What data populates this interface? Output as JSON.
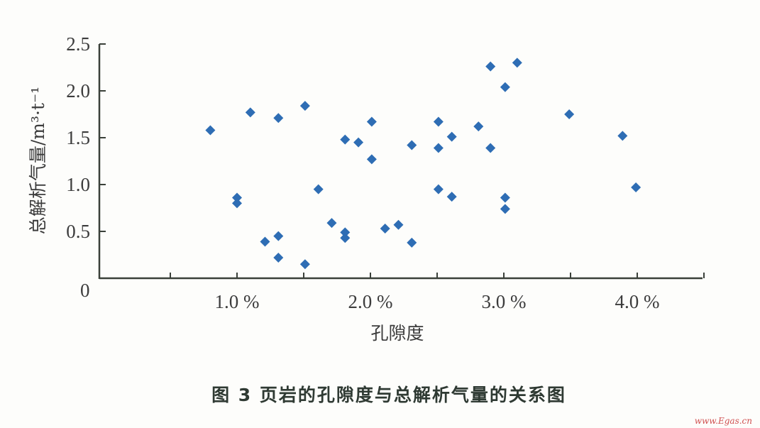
{
  "chart_data": {
    "type": "scatter",
    "caption": "图 3   页岩的孔隙度与总解析气量的关系图",
    "xlabel": "孔隙度",
    "ylabel": "总解析气量/m³·t⁻¹",
    "xlim": [
      0,
      4.5
    ],
    "ylim": [
      0,
      2.5
    ],
    "x_ticks": [
      {
        "value": 1.0,
        "label": "1.0 %"
      },
      {
        "value": 2.0,
        "label": "2.0 %"
      },
      {
        "value": 3.0,
        "label": "3.0 %"
      },
      {
        "value": 4.0,
        "label": "4.0 %"
      }
    ],
    "y_ticks": [
      {
        "value": 0.5,
        "label": "0.5"
      },
      {
        "value": 1.0,
        "label": "1.0"
      },
      {
        "value": 1.5,
        "label": "1.5"
      },
      {
        "value": 2.0,
        "label": "2.0"
      },
      {
        "value": 2.5,
        "label": "2.5"
      }
    ],
    "origin_label": "0",
    "grid": false,
    "marker": "diamond",
    "marker_color": "#2e6db4",
    "points": [
      [
        0.8,
        1.58
      ],
      [
        1.1,
        1.77
      ],
      [
        1.31,
        1.71
      ],
      [
        1.51,
        1.84
      ],
      [
        2.01,
        1.67
      ],
      [
        2.51,
        1.67
      ],
      [
        1.81,
        1.48
      ],
      [
        1.91,
        1.45
      ],
      [
        2.31,
        1.42
      ],
      [
        2.51,
        1.39
      ],
      [
        2.01,
        1.27
      ],
      [
        1.61,
        0.95
      ],
      [
        2.51,
        0.95
      ],
      [
        1.0,
        0.86
      ],
      [
        1.0,
        0.8
      ],
      [
        1.71,
        0.59
      ],
      [
        2.11,
        0.53
      ],
      [
        2.21,
        0.57
      ],
      [
        1.81,
        0.49
      ],
      [
        1.81,
        0.43
      ],
      [
        1.31,
        0.45
      ],
      [
        1.21,
        0.39
      ],
      [
        2.31,
        0.38
      ],
      [
        1.31,
        0.22
      ],
      [
        1.51,
        0.15
      ],
      [
        2.9,
        2.26
      ],
      [
        3.1,
        2.3
      ],
      [
        3.01,
        2.04
      ],
      [
        3.49,
        1.75
      ],
      [
        2.81,
        1.62
      ],
      [
        2.61,
        1.51
      ],
      [
        2.9,
        1.39
      ],
      [
        3.89,
        1.52
      ],
      [
        2.61,
        0.87
      ],
      [
        3.01,
        0.86
      ],
      [
        3.01,
        0.74
      ],
      [
        3.99,
        0.97
      ]
    ]
  },
  "watermark": "www.Egas.cn"
}
